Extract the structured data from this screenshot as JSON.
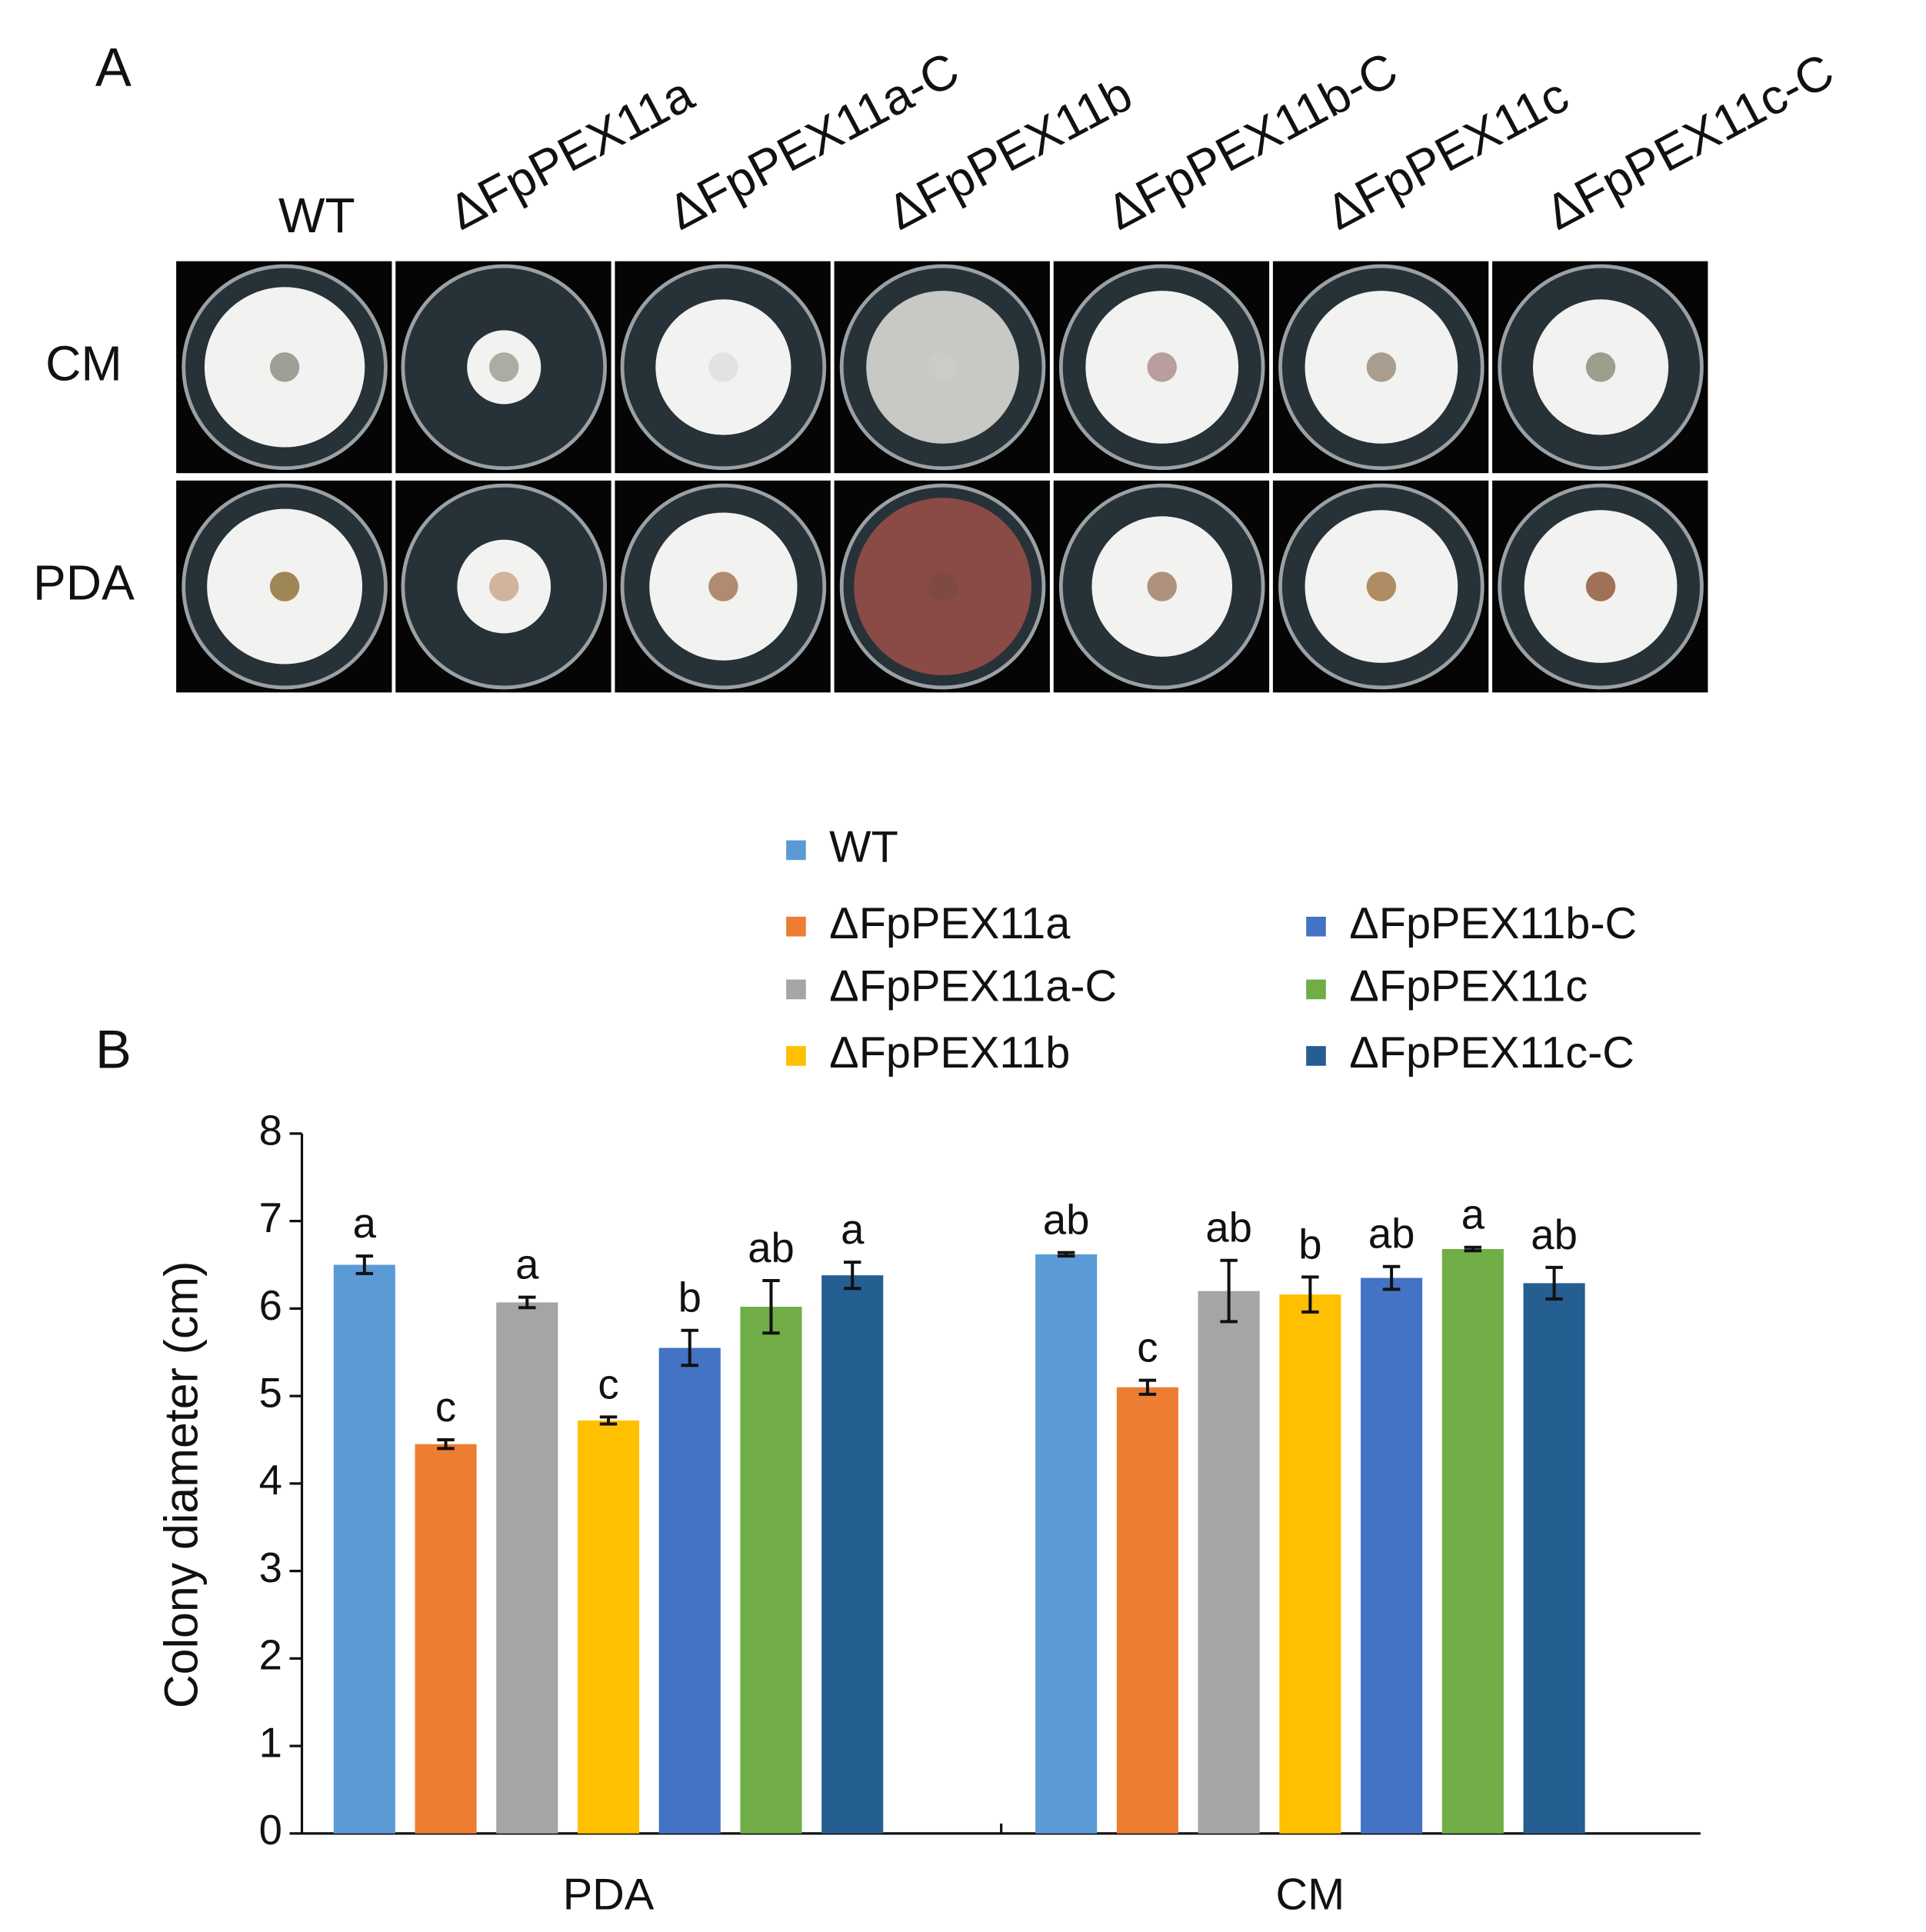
{
  "panel_a": {
    "label": "A",
    "columns": [
      "WT",
      "ΔFpPEX11a",
      "ΔFpPEX11a-C",
      "ΔFpPEX11b",
      "ΔFpPEX11b-C",
      "ΔFpPEX11c",
      "ΔFpPEX11c-C"
    ],
    "rows": [
      "CM",
      "PDA"
    ]
  },
  "chart_data": {
    "type": "bar",
    "panel_label": "B",
    "y_label": "Colony diameter (cm)",
    "categories": [
      "PDA",
      "CM"
    ],
    "ylim": [
      0,
      8
    ],
    "yticks": [
      0,
      1,
      2,
      3,
      4,
      5,
      6,
      7,
      8
    ],
    "series": [
      {
        "name": "WT",
        "color": "#5b9bd5",
        "values": [
          6.5,
          6.62
        ],
        "errors": [
          0.1,
          0.02
        ],
        "sig_labels": [
          "a",
          "ab"
        ]
      },
      {
        "name": "ΔFpPEX11a",
        "color": "#ed7d31",
        "values": [
          4.45,
          5.1
        ],
        "errors": [
          0.05,
          0.08
        ],
        "sig_labels": [
          "c",
          "c"
        ]
      },
      {
        "name": "ΔFpPEX11a-C",
        "color": "#a5a5a5",
        "values": [
          6.07,
          6.2
        ],
        "errors": [
          0.06,
          0.35
        ],
        "sig_labels": [
          "a",
          "ab"
        ]
      },
      {
        "name": "ΔFpPEX11b",
        "color": "#ffc000",
        "values": [
          4.72,
          6.16
        ],
        "errors": [
          0.04,
          0.2
        ],
        "sig_labels": [
          "c",
          "b"
        ]
      },
      {
        "name": "ΔFpPEX11b-C",
        "color": "#4472c4",
        "values": [
          5.55,
          6.35
        ],
        "errors": [
          0.2,
          0.13
        ],
        "sig_labels": [
          "b",
          "ab"
        ]
      },
      {
        "name": "ΔFpPEX11c",
        "color": "#70ad47",
        "values": [
          6.02,
          6.68
        ],
        "errors": [
          0.3,
          0.02
        ],
        "sig_labels": [
          "ab",
          "a"
        ]
      },
      {
        "name": "ΔFpPEX11c-C",
        "color": "#255e91",
        "values": [
          6.38,
          6.29
        ],
        "errors": [
          0.15,
          0.18
        ],
        "sig_labels": [
          "a",
          "ab"
        ]
      }
    ]
  }
}
